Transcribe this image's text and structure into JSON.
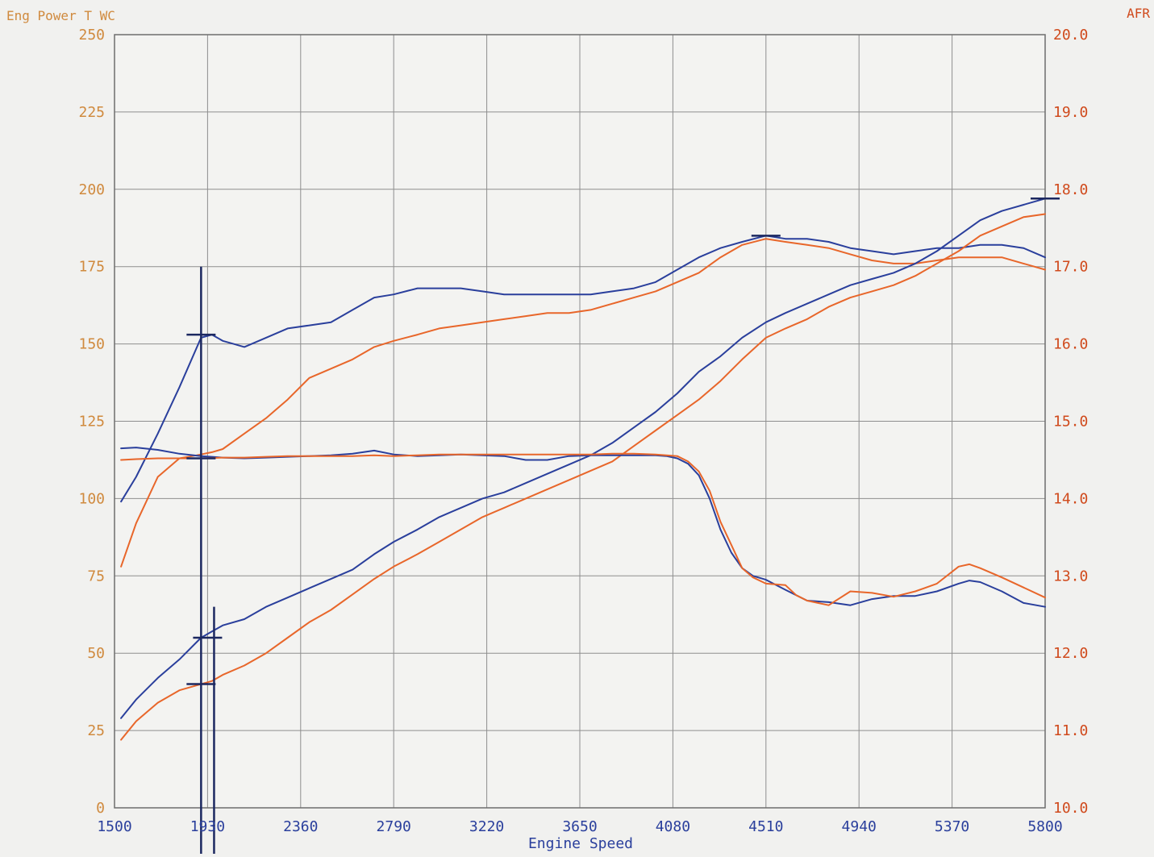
{
  "chart_data": {
    "type": "line",
    "left_axis_title": "Eng Power T WC",
    "right_axis_title": "AFR",
    "xlabel": "Engine Speed",
    "x_ticks": [
      1500,
      1930,
      2360,
      2790,
      3220,
      3650,
      4080,
      4510,
      4940,
      5370,
      5800
    ],
    "x_tick_labels": [
      "1500",
      "1930",
      "2360",
      "2790",
      "3220",
      "3650",
      "4080",
      "4510",
      "4940",
      "5370",
      "5800"
    ],
    "xlim": [
      1500,
      5800
    ],
    "y_left_ticks": [
      0,
      25,
      50,
      75,
      100,
      125,
      150,
      175,
      200,
      225,
      250
    ],
    "y_left_tick_labels": [
      "0",
      "25",
      "50",
      "75",
      "100",
      "125",
      "150",
      "175",
      "200",
      "225",
      "250"
    ],
    "ylim_left": [
      0,
      250
    ],
    "y_right_ticks": [
      10.0,
      11.0,
      12.0,
      13.0,
      14.0,
      15.0,
      16.0,
      17.0,
      18.0,
      19.0,
      20.0
    ],
    "y_right_tick_labels": [
      "10.0",
      "11.0",
      "12.0",
      "13.0",
      "14.0",
      "15.0",
      "16.0",
      "17.0",
      "18.0",
      "19.0",
      "20.0"
    ],
    "ylim_right": [
      10,
      20
    ],
    "grid": true,
    "colors": {
      "blue": "#2a3f9c",
      "orange": "#e8662a",
      "left_axis": "#d08a3e",
      "right_axis": "#d04a1c",
      "x_axis": "#2a3f9c",
      "grid": "#8e8e8e",
      "marker": "#1c2860"
    },
    "series": [
      {
        "color": "blue",
        "axis": "left",
        "x": [
          1530,
          1600,
          1700,
          1800,
          1900,
          1950,
          2000,
          2050,
          2100,
          2200,
          2300,
          2400,
          2500,
          2600,
          2700,
          2790,
          2900,
          3000,
          3100,
          3200,
          3300,
          3400,
          3500,
          3600,
          3700,
          3800,
          3900,
          4000,
          4100,
          4200,
          4300,
          4400,
          4510,
          4600,
          4700,
          4800,
          4900,
          5000,
          5100,
          5200,
          5300,
          5400,
          5500,
          5600,
          5700,
          5800
        ],
        "y": [
          99,
          107,
          121,
          136,
          152,
          153,
          151,
          150,
          149,
          152,
          155,
          156,
          157,
          161,
          165,
          166,
          168,
          168,
          168,
          167,
          166,
          166,
          166,
          166,
          166,
          167,
          168,
          170,
          174,
          178,
          181,
          183,
          185,
          184,
          184,
          183,
          181,
          180,
          179,
          180,
          181,
          181,
          182,
          182,
          181,
          178
        ]
      },
      {
        "color": "orange",
        "axis": "left",
        "x": [
          1530,
          1600,
          1700,
          1800,
          1880,
          1950,
          2000,
          2100,
          2200,
          2300,
          2400,
          2500,
          2600,
          2700,
          2790,
          2900,
          3000,
          3100,
          3200,
          3300,
          3400,
          3500,
          3600,
          3700,
          3800,
          3900,
          4000,
          4100,
          4200,
          4300,
          4400,
          4510,
          4600,
          4700,
          4800,
          4900,
          5000,
          5100,
          5200,
          5300,
          5400,
          5500,
          5600,
          5700,
          5800
        ],
        "y": [
          78,
          92,
          107,
          113,
          114,
          115,
          116,
          121,
          126,
          132,
          139,
          142,
          145,
          149,
          151,
          153,
          155,
          156,
          157,
          158,
          159,
          160,
          160,
          161,
          163,
          165,
          167,
          170,
          173,
          178,
          182,
          184,
          183,
          182,
          181,
          179,
          177,
          176,
          176,
          177,
          178,
          178,
          178,
          176,
          174
        ]
      },
      {
        "color": "blue",
        "axis": "left",
        "x": [
          1530,
          1600,
          1700,
          1800,
          1900,
          1950,
          2000,
          2100,
          2200,
          2300,
          2400,
          2500,
          2600,
          2700,
          2790,
          2900,
          3000,
          3100,
          3200,
          3300,
          3400,
          3500,
          3600,
          3700,
          3800,
          3900,
          4000,
          4100,
          4200,
          4300,
          4400,
          4510,
          4600,
          4700,
          4800,
          4900,
          5000,
          5100,
          5200,
          5300,
          5400,
          5500,
          5600,
          5700,
          5800
        ],
        "y": [
          29,
          35,
          42,
          48,
          55,
          57,
          59,
          61,
          65,
          68,
          71,
          74,
          77,
          82,
          86,
          90,
          94,
          97,
          100,
          102,
          105,
          108,
          111,
          114,
          118,
          123,
          128,
          134,
          141,
          146,
          152,
          157,
          160,
          163,
          166,
          169,
          171,
          173,
          176,
          180,
          185,
          190,
          193,
          195,
          197
        ]
      },
      {
        "color": "orange",
        "axis": "left",
        "x": [
          1530,
          1600,
          1700,
          1800,
          1900,
          1950,
          2000,
          2100,
          2200,
          2300,
          2400,
          2500,
          2600,
          2700,
          2790,
          2900,
          3000,
          3100,
          3200,
          3300,
          3400,
          3500,
          3600,
          3700,
          3800,
          3900,
          4000,
          4100,
          4200,
          4300,
          4400,
          4510,
          4600,
          4700,
          4800,
          4900,
          5000,
          5100,
          5200,
          5300,
          5400,
          5500,
          5600,
          5700,
          5800
        ],
        "y": [
          22,
          28,
          34,
          38,
          40,
          41,
          43,
          46,
          50,
          55,
          60,
          64,
          69,
          74,
          78,
          82,
          86,
          90,
          94,
          97,
          100,
          103,
          106,
          109,
          112,
          117,
          122,
          127,
          132,
          138,
          145,
          152,
          155,
          158,
          162,
          165,
          167,
          169,
          172,
          176,
          180,
          185,
          188,
          191,
          192
        ]
      },
      {
        "color": "blue",
        "axis": "right",
        "x": [
          1530,
          1600,
          1700,
          1800,
          1900,
          2000,
          2100,
          2200,
          2300,
          2400,
          2500,
          2600,
          2700,
          2790,
          2900,
          3000,
          3100,
          3200,
          3300,
          3400,
          3500,
          3600,
          3700,
          3800,
          3900,
          4000,
          4050,
          4100,
          4150,
          4200,
          4250,
          4300,
          4350,
          4400,
          4450,
          4510,
          4600,
          4700,
          4800,
          4900,
          5000,
          5100,
          5200,
          5300,
          5400,
          5450,
          5500,
          5600,
          5700,
          5800
        ],
        "y": [
          14.65,
          14.66,
          14.63,
          14.58,
          14.55,
          14.53,
          14.52,
          14.53,
          14.54,
          14.55,
          14.56,
          14.58,
          14.62,
          14.57,
          14.55,
          14.56,
          14.57,
          14.56,
          14.55,
          14.5,
          14.5,
          14.55,
          14.56,
          14.56,
          14.56,
          14.56,
          14.55,
          14.52,
          14.45,
          14.3,
          14.0,
          13.6,
          13.3,
          13.1,
          13.0,
          12.95,
          12.82,
          12.68,
          12.66,
          12.62,
          12.7,
          12.74,
          12.74,
          12.8,
          12.9,
          12.94,
          12.92,
          12.8,
          12.65,
          12.6
        ]
      },
      {
        "color": "orange",
        "axis": "right",
        "x": [
          1530,
          1600,
          1700,
          1800,
          1900,
          2000,
          2100,
          2200,
          2300,
          2400,
          2500,
          2600,
          2700,
          2790,
          2900,
          3000,
          3100,
          3200,
          3300,
          3400,
          3500,
          3600,
          3700,
          3800,
          3900,
          4000,
          4050,
          4100,
          4150,
          4200,
          4250,
          4300,
          4350,
          4400,
          4450,
          4510,
          4600,
          4650,
          4700,
          4800,
          4900,
          5000,
          5100,
          5200,
          5300,
          5400,
          5450,
          5500,
          5600,
          5700,
          5800
        ],
        "y": [
          14.5,
          14.51,
          14.52,
          14.52,
          14.52,
          14.53,
          14.53,
          14.54,
          14.55,
          14.55,
          14.55,
          14.55,
          14.56,
          14.55,
          14.56,
          14.57,
          14.57,
          14.57,
          14.57,
          14.57,
          14.57,
          14.57,
          14.57,
          14.58,
          14.58,
          14.57,
          14.56,
          14.55,
          14.48,
          14.35,
          14.1,
          13.7,
          13.4,
          13.1,
          12.98,
          12.9,
          12.88,
          12.75,
          12.68,
          12.62,
          12.8,
          12.78,
          12.73,
          12.8,
          12.9,
          13.12,
          13.15,
          13.1,
          12.98,
          12.85,
          12.72
        ]
      }
    ],
    "annotations": {
      "peak_markers": [
        {
          "x": 1900,
          "y": 153,
          "axis": "left"
        },
        {
          "x": 1900,
          "y": 113,
          "axis": "left"
        },
        {
          "x": 1930,
          "y": 55,
          "axis": "left"
        },
        {
          "x": 1900,
          "y": 40,
          "axis": "left"
        },
        {
          "x": 4510,
          "y": 185,
          "axis": "left"
        },
        {
          "x": 5800,
          "y": 197,
          "axis": "left"
        }
      ],
      "vertical_lines": [
        {
          "x": 1900,
          "y_top": 175,
          "axis": "left"
        },
        {
          "x": 1960,
          "y_top": 65,
          "axis": "left"
        }
      ]
    }
  }
}
